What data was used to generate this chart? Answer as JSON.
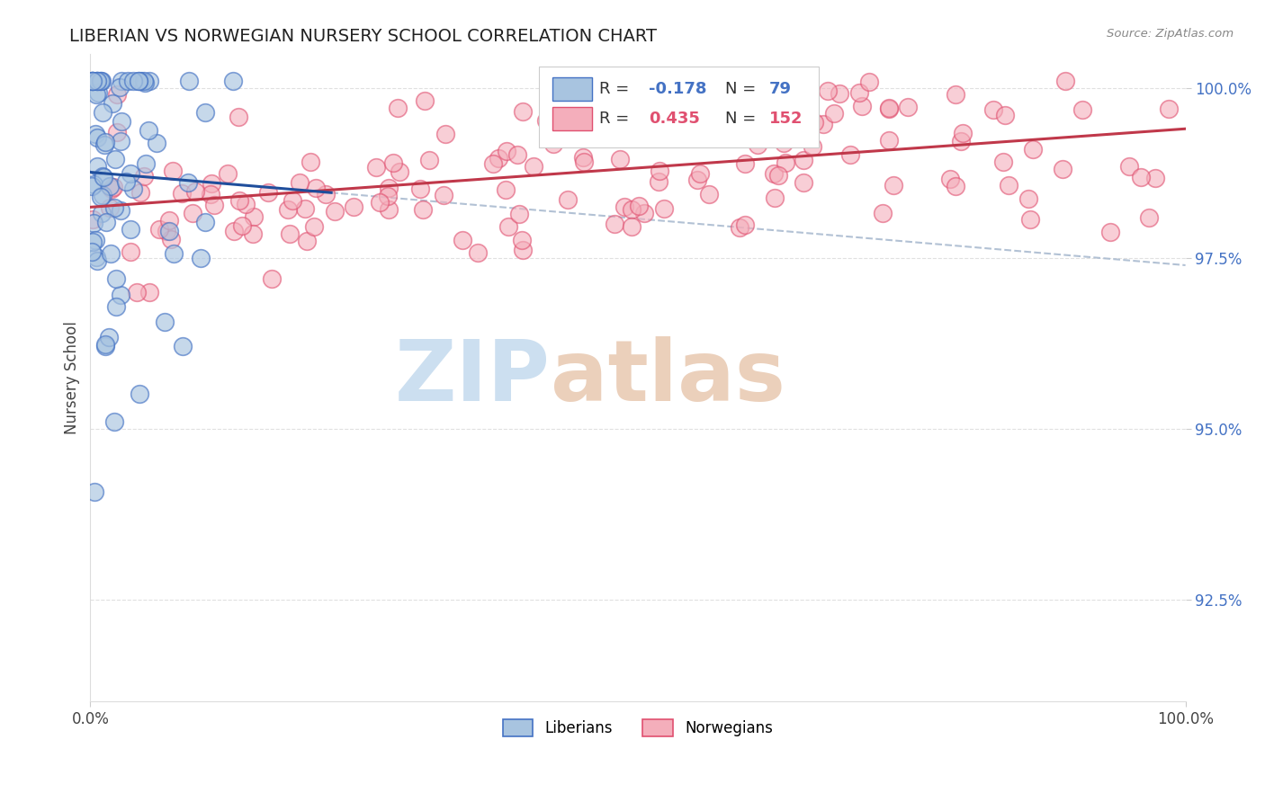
{
  "title": "LIBERIAN VS NORWEGIAN NURSERY SCHOOL CORRELATION CHART",
  "source_text": "Source: ZipAtlas.com",
  "ylabel": "Nursery School",
  "xlim": [
    0.0,
    1.0
  ],
  "ylim": [
    0.91,
    1.005
  ],
  "yticks": [
    0.925,
    0.95,
    0.975,
    1.0
  ],
  "ytick_labels": [
    "92.5%",
    "95.0%",
    "97.5%",
    "100.0%"
  ],
  "xtick_labels_left": "0.0%",
  "xtick_labels_right": "100.0%",
  "liberian_R": -0.178,
  "liberian_N": 79,
  "norwegian_R": 0.435,
  "norwegian_N": 152,
  "blue_fill": "#A8C4E0",
  "blue_edge": "#4472C4",
  "pink_fill": "#F4AEBB",
  "pink_edge": "#E05070",
  "blue_line_color": "#1F4E9C",
  "pink_line_color": "#C0384A",
  "dashed_line_color": "#AABBD0",
  "title_color": "#222222",
  "ytick_color": "#4472C4",
  "watermark_zip_color": "#CCDFF0",
  "watermark_atlas_color": "#E8C8B0",
  "background_color": "#FFFFFF",
  "seed": 42
}
